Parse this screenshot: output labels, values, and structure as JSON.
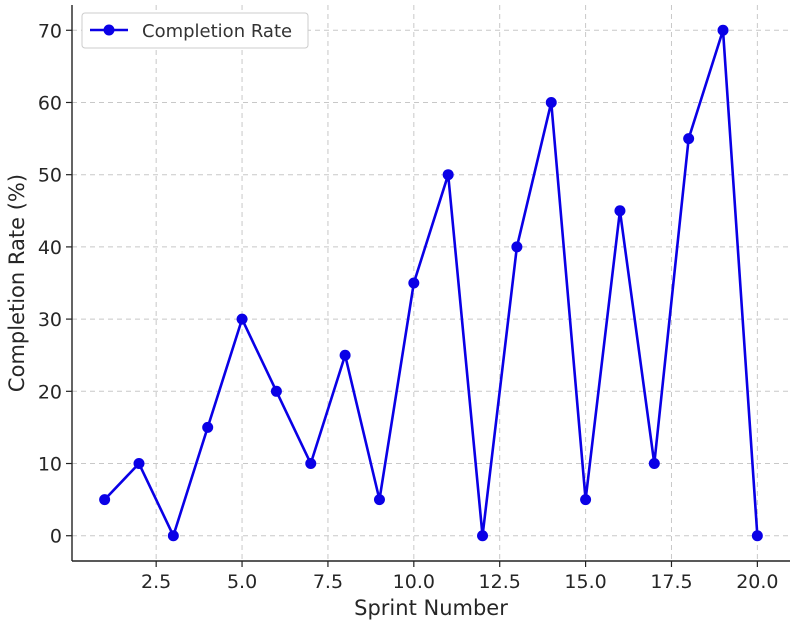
{
  "chart_data": {
    "type": "line",
    "xlabel": "Sprint Number",
    "ylabel": "Completion Rate (%)",
    "xlim": [
      0.05,
      20.95
    ],
    "ylim": [
      -3.5,
      73.5
    ],
    "x_ticks": [
      2.5,
      5.0,
      7.5,
      10.0,
      12.5,
      15.0,
      17.5,
      20.0
    ],
    "x_tick_labels": [
      "2.5",
      "5.0",
      "7.5",
      "10.0",
      "12.5",
      "15.0",
      "17.5",
      "20.0"
    ],
    "y_ticks": [
      0,
      10,
      20,
      30,
      40,
      50,
      60,
      70
    ],
    "y_tick_labels": [
      "0",
      "10",
      "20",
      "30",
      "40",
      "50",
      "60",
      "70"
    ],
    "grid": true,
    "legend_position": "top-left",
    "series": [
      {
        "name": "Completion Rate",
        "color": "#0a00e6",
        "marker": "circle",
        "x": [
          1,
          2,
          3,
          4,
          5,
          6,
          7,
          8,
          9,
          10,
          11,
          12,
          13,
          14,
          15,
          16,
          17,
          18,
          19,
          20
        ],
        "y": [
          5,
          10,
          0,
          15,
          30,
          20,
          10,
          25,
          5,
          35,
          50,
          0,
          40,
          60,
          5,
          45,
          10,
          55,
          70,
          0
        ]
      }
    ]
  }
}
